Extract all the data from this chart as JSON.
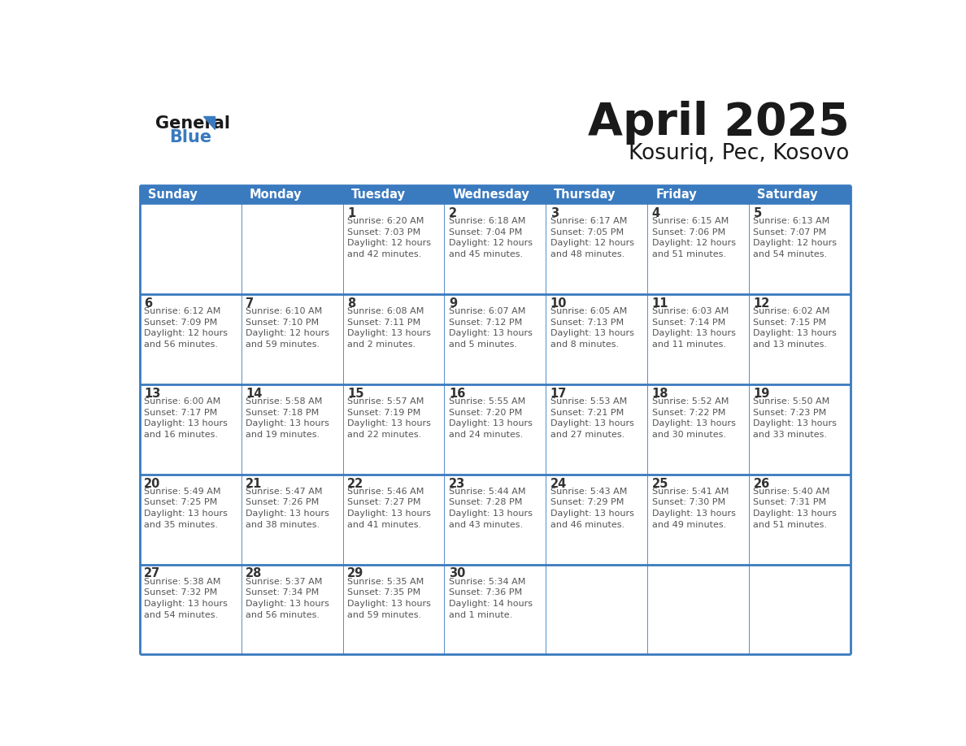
{
  "title": "April 2025",
  "subtitle": "Kosuriq, Pec, Kosovo",
  "header_bg_color": "#3a7abf",
  "header_text_color": "#ffffff",
  "cell_bg_color": "#ffffff",
  "border_color": "#3a7abf",
  "title_color": "#1a1a1a",
  "subtitle_color": "#1a1a1a",
  "day_text_color": "#333333",
  "info_text_color": "#555555",
  "days_of_week": [
    "Sunday",
    "Monday",
    "Tuesday",
    "Wednesday",
    "Thursday",
    "Friday",
    "Saturday"
  ],
  "weeks": [
    [
      {
        "day": "",
        "info": ""
      },
      {
        "day": "",
        "info": ""
      },
      {
        "day": "1",
        "info": "Sunrise: 6:20 AM\nSunset: 7:03 PM\nDaylight: 12 hours\nand 42 minutes."
      },
      {
        "day": "2",
        "info": "Sunrise: 6:18 AM\nSunset: 7:04 PM\nDaylight: 12 hours\nand 45 minutes."
      },
      {
        "day": "3",
        "info": "Sunrise: 6:17 AM\nSunset: 7:05 PM\nDaylight: 12 hours\nand 48 minutes."
      },
      {
        "day": "4",
        "info": "Sunrise: 6:15 AM\nSunset: 7:06 PM\nDaylight: 12 hours\nand 51 minutes."
      },
      {
        "day": "5",
        "info": "Sunrise: 6:13 AM\nSunset: 7:07 PM\nDaylight: 12 hours\nand 54 minutes."
      }
    ],
    [
      {
        "day": "6",
        "info": "Sunrise: 6:12 AM\nSunset: 7:09 PM\nDaylight: 12 hours\nand 56 minutes."
      },
      {
        "day": "7",
        "info": "Sunrise: 6:10 AM\nSunset: 7:10 PM\nDaylight: 12 hours\nand 59 minutes."
      },
      {
        "day": "8",
        "info": "Sunrise: 6:08 AM\nSunset: 7:11 PM\nDaylight: 13 hours\nand 2 minutes."
      },
      {
        "day": "9",
        "info": "Sunrise: 6:07 AM\nSunset: 7:12 PM\nDaylight: 13 hours\nand 5 minutes."
      },
      {
        "day": "10",
        "info": "Sunrise: 6:05 AM\nSunset: 7:13 PM\nDaylight: 13 hours\nand 8 minutes."
      },
      {
        "day": "11",
        "info": "Sunrise: 6:03 AM\nSunset: 7:14 PM\nDaylight: 13 hours\nand 11 minutes."
      },
      {
        "day": "12",
        "info": "Sunrise: 6:02 AM\nSunset: 7:15 PM\nDaylight: 13 hours\nand 13 minutes."
      }
    ],
    [
      {
        "day": "13",
        "info": "Sunrise: 6:00 AM\nSunset: 7:17 PM\nDaylight: 13 hours\nand 16 minutes."
      },
      {
        "day": "14",
        "info": "Sunrise: 5:58 AM\nSunset: 7:18 PM\nDaylight: 13 hours\nand 19 minutes."
      },
      {
        "day": "15",
        "info": "Sunrise: 5:57 AM\nSunset: 7:19 PM\nDaylight: 13 hours\nand 22 minutes."
      },
      {
        "day": "16",
        "info": "Sunrise: 5:55 AM\nSunset: 7:20 PM\nDaylight: 13 hours\nand 24 minutes."
      },
      {
        "day": "17",
        "info": "Sunrise: 5:53 AM\nSunset: 7:21 PM\nDaylight: 13 hours\nand 27 minutes."
      },
      {
        "day": "18",
        "info": "Sunrise: 5:52 AM\nSunset: 7:22 PM\nDaylight: 13 hours\nand 30 minutes."
      },
      {
        "day": "19",
        "info": "Sunrise: 5:50 AM\nSunset: 7:23 PM\nDaylight: 13 hours\nand 33 minutes."
      }
    ],
    [
      {
        "day": "20",
        "info": "Sunrise: 5:49 AM\nSunset: 7:25 PM\nDaylight: 13 hours\nand 35 minutes."
      },
      {
        "day": "21",
        "info": "Sunrise: 5:47 AM\nSunset: 7:26 PM\nDaylight: 13 hours\nand 38 minutes."
      },
      {
        "day": "22",
        "info": "Sunrise: 5:46 AM\nSunset: 7:27 PM\nDaylight: 13 hours\nand 41 minutes."
      },
      {
        "day": "23",
        "info": "Sunrise: 5:44 AM\nSunset: 7:28 PM\nDaylight: 13 hours\nand 43 minutes."
      },
      {
        "day": "24",
        "info": "Sunrise: 5:43 AM\nSunset: 7:29 PM\nDaylight: 13 hours\nand 46 minutes."
      },
      {
        "day": "25",
        "info": "Sunrise: 5:41 AM\nSunset: 7:30 PM\nDaylight: 13 hours\nand 49 minutes."
      },
      {
        "day": "26",
        "info": "Sunrise: 5:40 AM\nSunset: 7:31 PM\nDaylight: 13 hours\nand 51 minutes."
      }
    ],
    [
      {
        "day": "27",
        "info": "Sunrise: 5:38 AM\nSunset: 7:32 PM\nDaylight: 13 hours\nand 54 minutes."
      },
      {
        "day": "28",
        "info": "Sunrise: 5:37 AM\nSunset: 7:34 PM\nDaylight: 13 hours\nand 56 minutes."
      },
      {
        "day": "29",
        "info": "Sunrise: 5:35 AM\nSunset: 7:35 PM\nDaylight: 13 hours\nand 59 minutes."
      },
      {
        "day": "30",
        "info": "Sunrise: 5:34 AM\nSunset: 7:36 PM\nDaylight: 14 hours\nand 1 minute."
      },
      {
        "day": "",
        "info": ""
      },
      {
        "day": "",
        "info": ""
      },
      {
        "day": "",
        "info": ""
      }
    ]
  ],
  "logo_general_color": "#1a1a1a",
  "logo_blue_color": "#3a7abf",
  "fig_width": 11.88,
  "fig_height": 9.18,
  "dpi": 100
}
